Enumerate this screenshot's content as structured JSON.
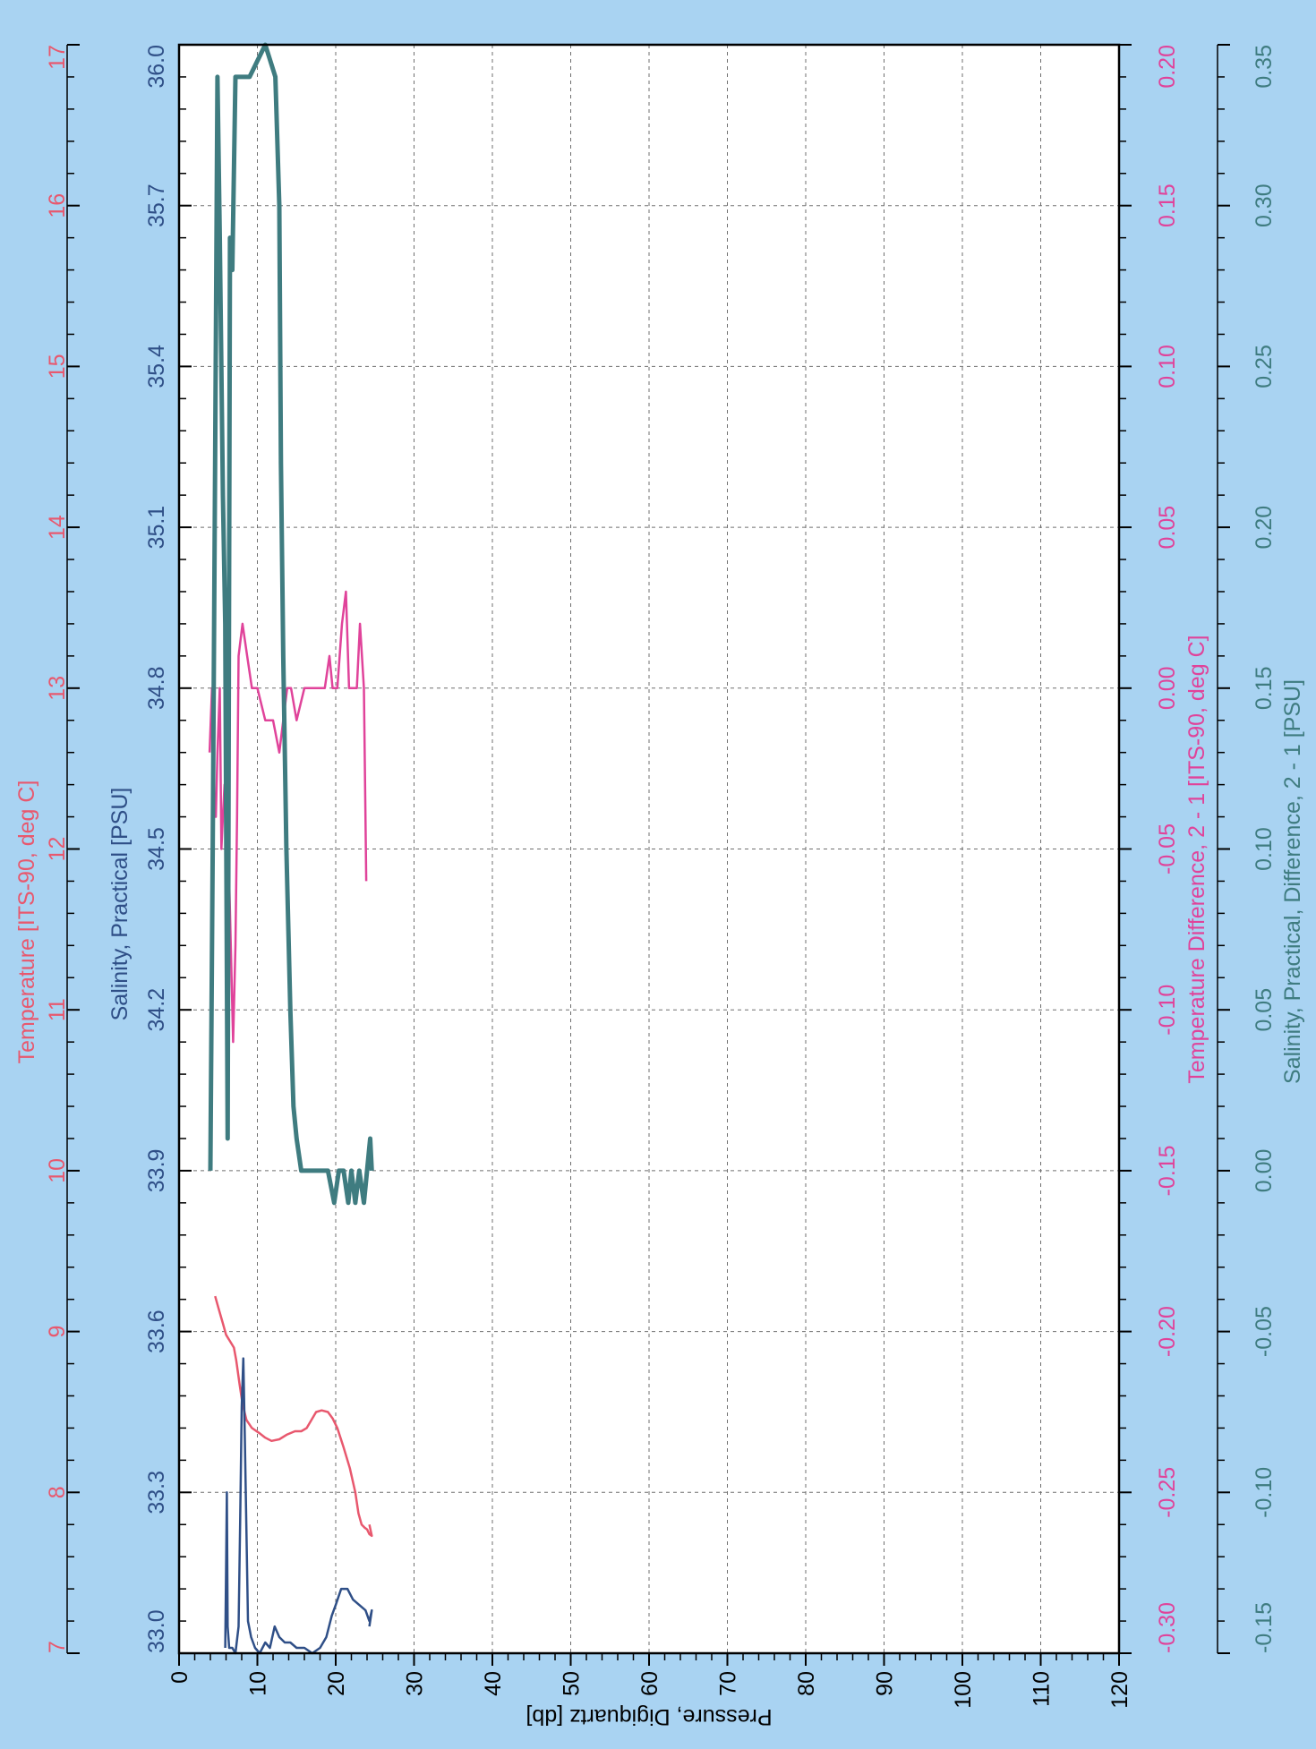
{
  "colors": {
    "background": "#a9d3f2",
    "plot_bg": "#ffffff",
    "grid": "#6f6f6f",
    "temperature": "#e8586e",
    "salinity": "#2f4f87",
    "temperature_difference": "#e0439a",
    "salinity_difference": "#3f7c80"
  },
  "chart_data": {
    "type": "line",
    "orientation": "rotated-90-clockwise",
    "pressure_axis": {
      "label": "Pressure, Digiquartz [db]",
      "range": [
        0,
        120
      ],
      "ticks": [
        "0",
        "10",
        "20",
        "30",
        "40",
        "50",
        "60",
        "70",
        "80",
        "90",
        "100",
        "110",
        "120"
      ]
    },
    "value_axes": [
      {
        "key": "temperature",
        "label": "Temperature [ITS-90, deg C]",
        "range": [
          7,
          17
        ],
        "ticks": [
          "7",
          "8",
          "9",
          "10",
          "11",
          "12",
          "13",
          "14",
          "15",
          "16",
          "17"
        ]
      },
      {
        "key": "salinity",
        "label": "Salinity, Practical [PSU]",
        "range": [
          33.0,
          36.0
        ],
        "ticks": [
          "33.0",
          "33.3",
          "33.6",
          "33.9",
          "34.2",
          "34.5",
          "34.8",
          "35.1",
          "35.4",
          "35.7",
          "36.0"
        ]
      },
      {
        "key": "temperature_difference",
        "label": "Temperature Difference, 2 - 1 [ITS-90, deg C]",
        "range": [
          -0.3,
          0.2
        ],
        "ticks": [
          "-0.30",
          "-0.25",
          "-0.20",
          "-0.15",
          "-0.10",
          "-0.05",
          "0.00",
          "0.05",
          "0.10",
          "0.15",
          "0.20"
        ]
      },
      {
        "key": "salinity_difference",
        "label": "Salinity, Practical, Difference, 2 - 1 [PSU]",
        "range": [
          -0.15,
          0.35
        ],
        "ticks": [
          "-0.15",
          "-0.10",
          "-0.05",
          "0.00",
          "0.05",
          "0.10",
          "0.15",
          "0.20",
          "0.25",
          "0.30",
          "0.35"
        ]
      }
    ],
    "series": [
      {
        "key": "temperature",
        "points": [
          [
            4.6,
            9.22
          ],
          [
            5.0,
            9.15
          ],
          [
            5.3,
            9.1
          ],
          [
            5.6,
            9.05
          ],
          [
            6.0,
            8.98
          ],
          [
            6.5,
            8.94
          ],
          [
            7.0,
            8.9
          ],
          [
            7.3,
            8.82
          ],
          [
            7.7,
            8.68
          ],
          [
            8.1,
            8.55
          ],
          [
            8.6,
            8.45
          ],
          [
            9.3,
            8.4
          ],
          [
            10.2,
            8.37
          ],
          [
            11.0,
            8.34
          ],
          [
            11.8,
            8.32
          ],
          [
            12.8,
            8.33
          ],
          [
            13.8,
            8.36
          ],
          [
            14.8,
            8.38
          ],
          [
            15.6,
            8.38
          ],
          [
            16.3,
            8.4
          ],
          [
            16.9,
            8.45
          ],
          [
            17.5,
            8.5
          ],
          [
            18.2,
            8.51
          ],
          [
            19.0,
            8.5
          ],
          [
            19.6,
            8.46
          ],
          [
            20.2,
            8.4
          ],
          [
            21.0,
            8.28
          ],
          [
            21.8,
            8.15
          ],
          [
            22.5,
            8.0
          ],
          [
            22.9,
            7.87
          ],
          [
            23.3,
            7.8
          ],
          [
            23.7,
            7.78
          ],
          [
            24.0,
            7.77
          ],
          [
            24.3,
            7.74
          ],
          [
            24.6,
            7.73
          ],
          [
            24.3,
            7.8
          ]
        ]
      },
      {
        "key": "salinity",
        "points": [
          [
            5.9,
            33.01
          ],
          [
            6.0,
            33.15
          ],
          [
            6.1,
            33.3
          ],
          [
            6.2,
            33.05
          ],
          [
            6.4,
            33.01
          ],
          [
            6.8,
            33.01
          ],
          [
            7.2,
            33.0
          ],
          [
            7.6,
            33.05
          ],
          [
            7.8,
            33.25
          ],
          [
            8.0,
            33.46
          ],
          [
            8.2,
            33.55
          ],
          [
            8.4,
            33.4
          ],
          [
            8.8,
            33.06
          ],
          [
            9.2,
            33.03
          ],
          [
            9.7,
            33.01
          ],
          [
            10.3,
            33.0
          ],
          [
            11.0,
            33.02
          ],
          [
            11.6,
            33.01
          ],
          [
            12.2,
            33.05
          ],
          [
            12.8,
            33.03
          ],
          [
            13.5,
            33.02
          ],
          [
            14.2,
            33.02
          ],
          [
            15.0,
            33.01
          ],
          [
            16.0,
            33.01
          ],
          [
            17.0,
            33.0
          ],
          [
            18.0,
            33.01
          ],
          [
            18.8,
            33.03
          ],
          [
            19.5,
            33.07
          ],
          [
            20.0,
            33.09
          ],
          [
            20.7,
            33.12
          ],
          [
            21.5,
            33.12
          ],
          [
            22.2,
            33.1
          ],
          [
            23.0,
            33.09
          ],
          [
            23.8,
            33.08
          ],
          [
            24.3,
            33.06
          ],
          [
            24.6,
            33.08
          ],
          [
            24.3,
            33.05
          ]
        ]
      },
      {
        "key": "temperature_difference",
        "points": [
          [
            3.9,
            -0.02
          ],
          [
            4.2,
            0.0
          ],
          [
            4.4,
            -0.03
          ],
          [
            4.7,
            -0.04
          ],
          [
            4.9,
            -0.02
          ],
          [
            5.2,
            0.0
          ],
          [
            5.4,
            -0.05
          ],
          [
            5.6,
            -0.04
          ],
          [
            5.8,
            -0.03
          ],
          [
            6.2,
            -0.04
          ],
          [
            6.6,
            -0.08
          ],
          [
            6.9,
            -0.11
          ],
          [
            7.2,
            -0.08
          ],
          [
            7.4,
            -0.04
          ],
          [
            7.6,
            0.01
          ],
          [
            8.1,
            0.02
          ],
          [
            8.7,
            0.01
          ],
          [
            9.3,
            0.0
          ],
          [
            10.0,
            0.0
          ],
          [
            11.0,
            -0.01
          ],
          [
            12.0,
            -0.01
          ],
          [
            12.8,
            -0.02
          ],
          [
            13.3,
            -0.01
          ],
          [
            13.8,
            0.0
          ],
          [
            14.3,
            0.0
          ],
          [
            15.0,
            -0.01
          ],
          [
            16.0,
            0.0
          ],
          [
            17.0,
            0.0
          ],
          [
            18.0,
            0.0
          ],
          [
            18.6,
            0.0
          ],
          [
            19.2,
            0.01
          ],
          [
            19.6,
            0.0
          ],
          [
            20.2,
            0.0
          ],
          [
            20.8,
            0.02
          ],
          [
            21.3,
            0.03
          ],
          [
            21.7,
            0.0
          ],
          [
            22.2,
            0.0
          ],
          [
            22.7,
            0.0
          ],
          [
            23.1,
            0.02
          ],
          [
            23.6,
            0.0
          ],
          [
            23.9,
            -0.06
          ]
        ]
      },
      {
        "key": "salinity_difference",
        "points": [
          [
            4.0,
            0.0
          ],
          [
            4.3,
            0.1
          ],
          [
            4.6,
            0.22
          ],
          [
            4.9,
            0.34
          ],
          [
            5.2,
            0.29
          ],
          [
            5.6,
            0.21
          ],
          [
            5.9,
            0.17
          ],
          [
            6.2,
            0.01
          ],
          [
            6.5,
            0.29
          ],
          [
            6.8,
            0.28
          ],
          [
            7.2,
            0.34
          ],
          [
            8.0,
            0.34
          ],
          [
            9.0,
            0.34
          ],
          [
            11.0,
            0.35
          ],
          [
            12.3,
            0.34
          ],
          [
            12.8,
            0.3
          ],
          [
            13.0,
            0.22
          ],
          [
            13.3,
            0.16
          ],
          [
            13.7,
            0.1
          ],
          [
            14.2,
            0.05
          ],
          [
            14.6,
            0.02
          ],
          [
            15.0,
            0.01
          ],
          [
            15.6,
            0.0
          ],
          [
            16.4,
            0.0
          ],
          [
            17.0,
            0.0
          ],
          [
            18.0,
            0.0
          ],
          [
            19.0,
            0.0
          ],
          [
            19.8,
            -0.01
          ],
          [
            20.4,
            0.0
          ],
          [
            21.0,
            0.0
          ],
          [
            21.6,
            -0.01
          ],
          [
            22.0,
            0.0
          ],
          [
            22.5,
            -0.01
          ],
          [
            23.0,
            0.0
          ],
          [
            23.6,
            -0.01
          ],
          [
            24.0,
            0.0
          ],
          [
            24.4,
            0.01
          ],
          [
            24.6,
            0.0
          ]
        ]
      }
    ],
    "grid": true
  }
}
